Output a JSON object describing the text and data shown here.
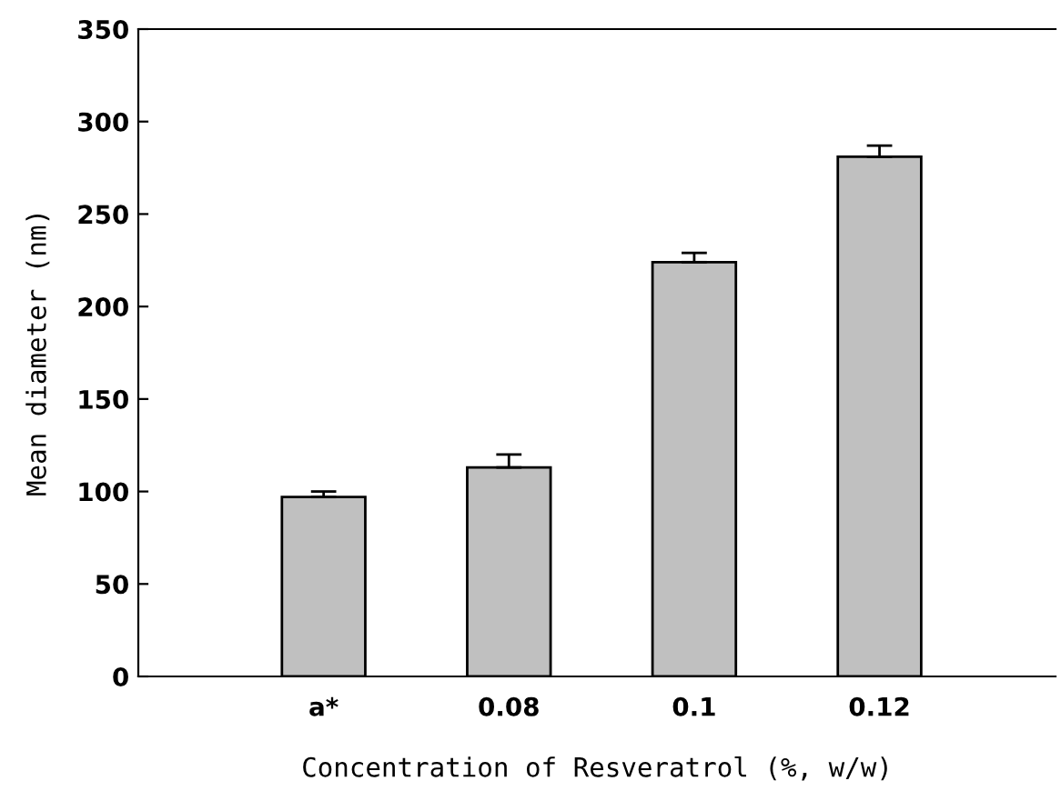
{
  "chart_data": {
    "type": "bar",
    "categories": [
      "a*",
      "0.08",
      "0.1",
      "0.12"
    ],
    "values": [
      97,
      113,
      224,
      281
    ],
    "errors": [
      3,
      7,
      5,
      6
    ],
    "color": "#c0c0c0",
    "xlabel": "Concentration of Resveratrol (%, w/w)",
    "ylabel": "Mean diameter (nm)",
    "ylim": [
      0,
      350
    ],
    "yticks": [
      0,
      50,
      100,
      150,
      200,
      250,
      300,
      350
    ],
    "grid": false,
    "legend": false
  }
}
